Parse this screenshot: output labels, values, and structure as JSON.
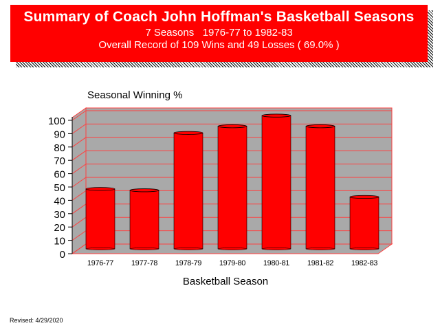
{
  "header": {
    "title": "Summary of Coach John Hoffman's Basketball Seasons",
    "subtitle": "7 Seasons   1976-77 to 1982-83",
    "record": "Overall Record of 109 Wins and 49 Losses ( 69.0% )"
  },
  "footer": {
    "revised": "Revised: 4/29/2020"
  },
  "colors": {
    "banner": "#ff0000",
    "bar": "#ff0000",
    "wall": "#a9a9a9",
    "grid": "#ff4040"
  },
  "chart_data": {
    "type": "bar",
    "title": "Seasonal Winning %",
    "xlabel": "Basketball Season",
    "ylabel": "",
    "categories": [
      "1976-77",
      "1977-78",
      "1978-79",
      "1979-80",
      "1980-81",
      "1981-82",
      "1982-83"
    ],
    "values": [
      47,
      46,
      89,
      94,
      102,
      94,
      41
    ],
    "ylim": [
      0,
      100
    ],
    "yticks": [
      0,
      10,
      20,
      30,
      40,
      50,
      60,
      70,
      80,
      90,
      100
    ],
    "grid": true,
    "style": "3d"
  }
}
